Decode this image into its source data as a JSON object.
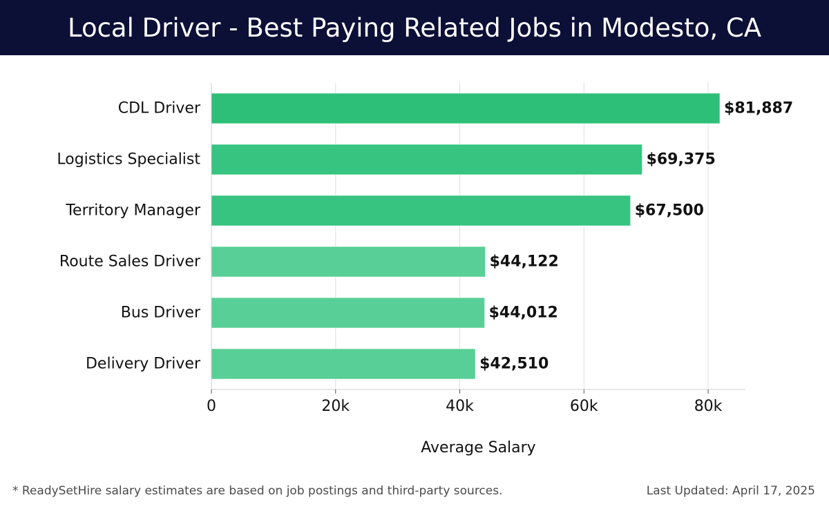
{
  "header": {
    "title": "Local Driver - Best Paying Related Jobs in Modesto, CA"
  },
  "chart_data": {
    "type": "bar",
    "orientation": "horizontal",
    "title": "Local Driver - Best Paying Related Jobs in Modesto, CA",
    "xlabel": "Average Salary",
    "ylabel": "",
    "xlim": [
      0,
      86000
    ],
    "x_ticks": [
      0,
      20000,
      40000,
      60000,
      80000
    ],
    "x_tick_labels": [
      "0",
      "20k",
      "40k",
      "60k",
      "80k"
    ],
    "grid": "vertical",
    "categories": [
      "CDL Driver",
      "Logistics Specialist",
      "Territory Manager",
      "Route Sales Driver",
      "Bus Driver",
      "Delivery Driver"
    ],
    "values": [
      81887,
      69375,
      67500,
      44122,
      44012,
      42510
    ],
    "data_labels": [
      "$81,887",
      "$69,375",
      "$67,500",
      "$44,122",
      "$44,012",
      "$42,510"
    ],
    "colors": {
      "top": "#2dbf78",
      "mid": "#36c480",
      "low": "#58cf96",
      "grid": "#dddddd",
      "axis": "#cccccc"
    }
  },
  "footer": {
    "note": "* ReadySetHire salary estimates are based on job postings and third-party sources.",
    "updated": "Last Updated: April 17, 2025"
  }
}
